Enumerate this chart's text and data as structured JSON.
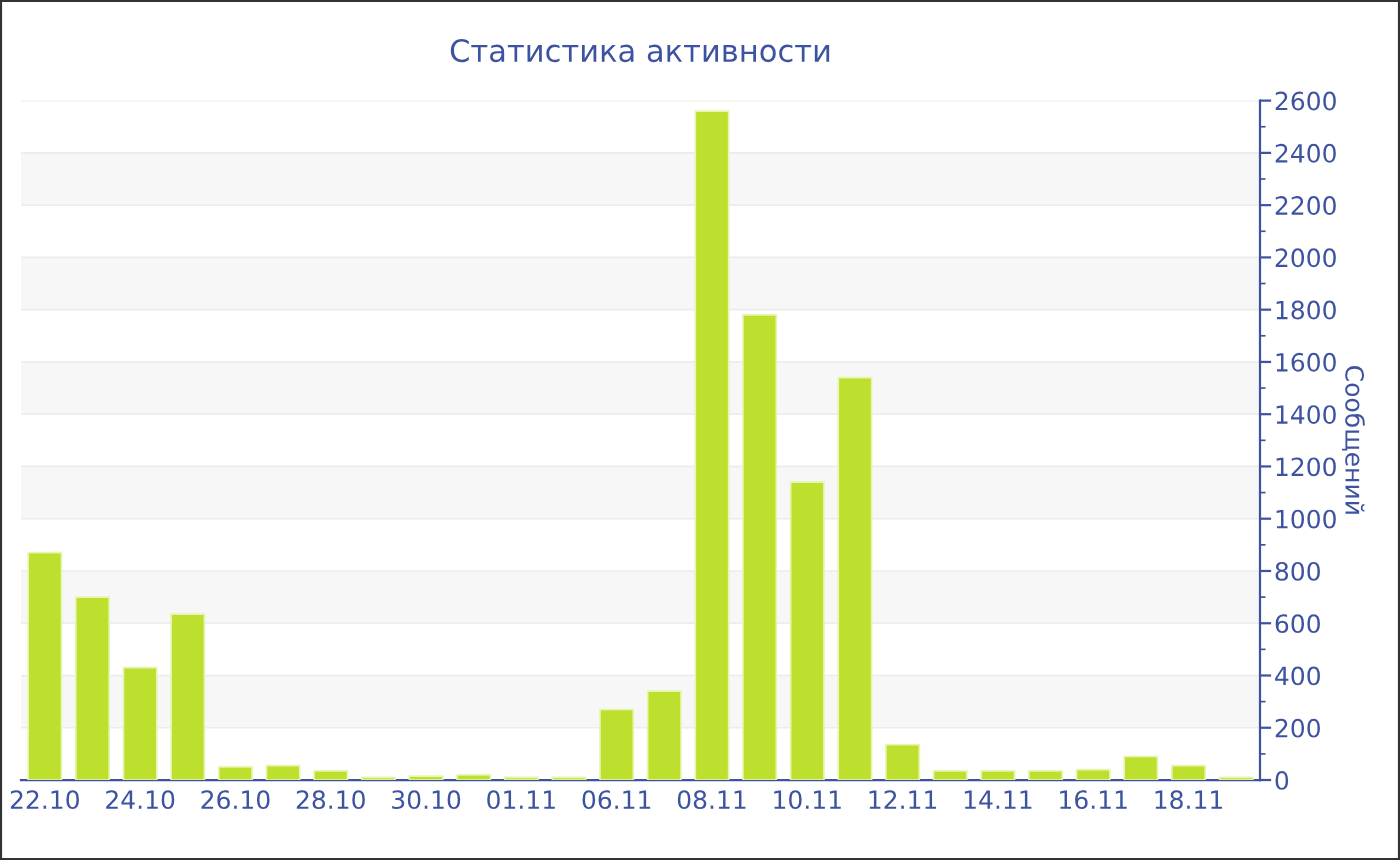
{
  "chart_data": {
    "type": "bar",
    "title": "Статистика активности",
    "ylabel": "Сообщений",
    "categories": [
      "22.10",
      null,
      "24.10",
      null,
      "26.10",
      null,
      "28.10",
      null,
      "30.10",
      null,
      "01.11",
      null,
      "06.11",
      null,
      "08.11",
      null,
      "10.11",
      null,
      "12.11",
      null,
      "14.11",
      null,
      "16.11",
      null,
      "18.11",
      null
    ],
    "values": [
      870,
      700,
      430,
      635,
      50,
      55,
      35,
      10,
      15,
      20,
      10,
      10,
      270,
      340,
      2560,
      1780,
      1140,
      1540,
      135,
      35,
      35,
      35,
      40,
      90,
      55,
      10
    ],
    "color": "#bde02f",
    "ylim": [
      0,
      2600
    ],
    "yticks": [
      0,
      200,
      400,
      600,
      800,
      1000,
      1200,
      1400,
      1600,
      1800,
      2000,
      2200,
      2400,
      2600
    ],
    "grid": "y"
  }
}
